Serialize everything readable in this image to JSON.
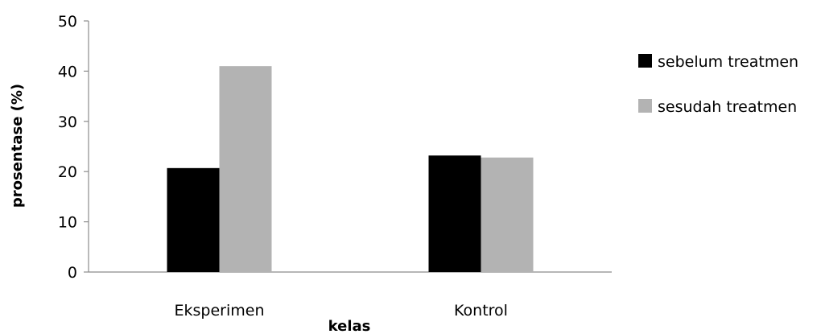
{
  "chart_data": {
    "type": "bar",
    "categories": [
      "Eksperimen",
      "Kontrol"
    ],
    "series": [
      {
        "name": "sebelum treatmen",
        "values": [
          20.7,
          23.2
        ],
        "color": "#000000"
      },
      {
        "name": "sesudah treatmen",
        "values": [
          41.0,
          22.8
        ],
        "color": "#b3b3b3"
      }
    ],
    "xlabel": "kelas",
    "ylabel": "prosentase (%)",
    "ylim": [
      0,
      50
    ],
    "yticks": [
      0,
      10,
      20,
      30,
      40,
      50
    ],
    "grid": false,
    "legend_position": "right"
  }
}
